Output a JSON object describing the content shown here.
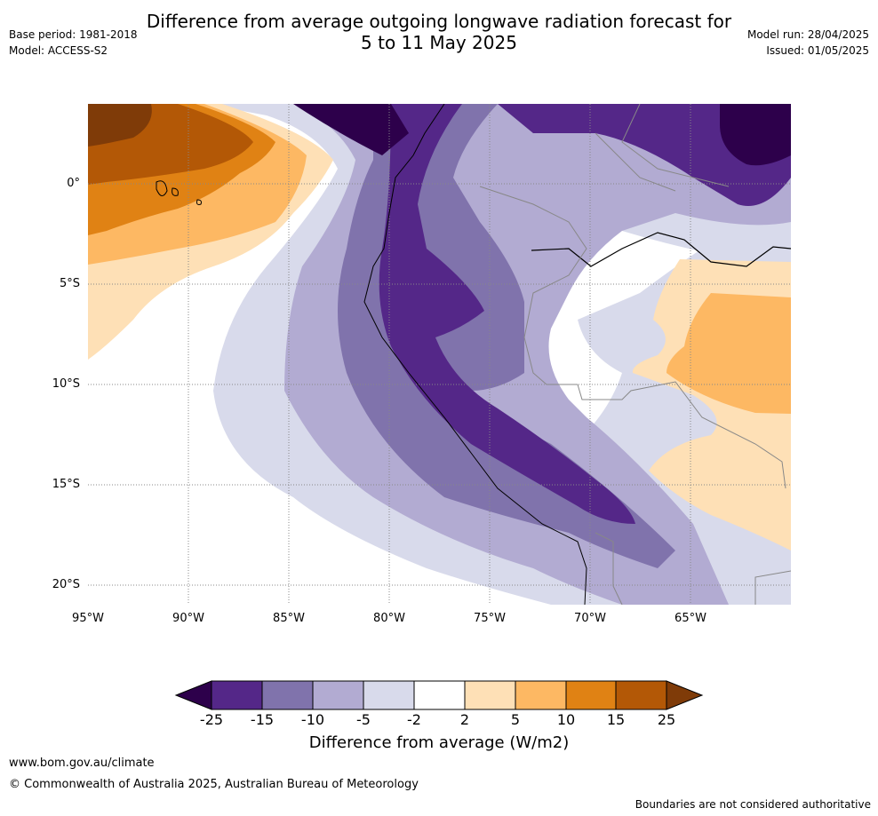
{
  "title": {
    "line1": "Difference from average outgoing longwave radiation forecast for",
    "line2": "5 to 11 May 2025"
  },
  "meta": {
    "base_period": "Base period: 1981-2018",
    "model": "Model: ACCESS-S2",
    "model_run": "Model run: 28/04/2025",
    "issued": "Issued: 01/05/2025"
  },
  "map": {
    "lat_labels": [
      "0°",
      "5°S",
      "10°S",
      "15°S",
      "20°S"
    ],
    "lon_labels": [
      "95°W",
      "90°W",
      "85°W",
      "80°W",
      "75°W",
      "70°W",
      "65°W"
    ],
    "gridlines": "dotted"
  },
  "colorbar": {
    "label": "Difference from average (W/m2)",
    "ticks": [
      "-25",
      "-15",
      "-10",
      "-5",
      "-2",
      "2",
      "5",
      "10",
      "15",
      "25"
    ],
    "colors": {
      "below_-25": "#2d004b",
      "-25_-15": "#542788",
      "-15_-10": "#8073ac",
      "-10_-5": "#b2abd2",
      "-5_-2": "#d8daeb",
      "-2_2": "#ffffff",
      "2_5": "#fee0b6",
      "5_10": "#fdb863",
      "10_15": "#e08214",
      "15_25": "#b35806",
      "above_25": "#7f3b08"
    }
  },
  "footer": {
    "url": "www.bom.gov.au/climate",
    "copyright": "© Commonwealth of Australia 2025, Australian Bureau of Meteorology",
    "disclaimer": "Boundaries are not considered authoritative"
  }
}
